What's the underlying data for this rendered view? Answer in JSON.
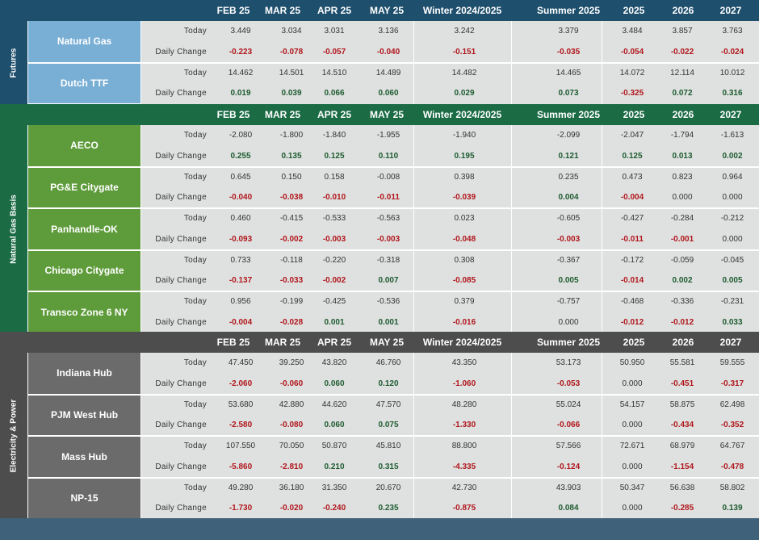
{
  "columns": [
    "FEB 25",
    "MAR 25",
    "APR 25",
    "MAY 25",
    "Winter 2024/2025",
    "Summer 2025",
    "2025",
    "2026",
    "2027"
  ],
  "row_labels": {
    "today": "Today",
    "daily_change": "Daily Change"
  },
  "colors": {
    "futures_header": "#1e4f6d",
    "futures_name": "#7aafd5",
    "basis_header": "#1b6b45",
    "basis_name": "#5e9b3a",
    "power_header": "#4d4d4d",
    "power_name": "#6b6b6b",
    "cell_bg": "#dfe1e0",
    "negative": "#b0161c",
    "positive": "#1d5b30",
    "footer": "#40617a"
  },
  "sections": [
    {
      "title": "Futures",
      "rows": [
        {
          "name": "Natural Gas",
          "today": [
            "3.449",
            "3.034",
            "3.031",
            "3.136",
            "3.242",
            "3.379",
            "3.484",
            "3.857",
            "3.763"
          ],
          "change": [
            "-0.223",
            "-0.078",
            "-0.057",
            "-0.040",
            "-0.151",
            "-0.035",
            "-0.054",
            "-0.022",
            "-0.024"
          ]
        },
        {
          "name": "Dutch TTF",
          "today": [
            "14.462",
            "14.501",
            "14.510",
            "14.489",
            "14.482",
            "14.465",
            "14.072",
            "12.114",
            "10.012"
          ],
          "change": [
            "0.019",
            "0.039",
            "0.066",
            "0.060",
            "0.029",
            "0.073",
            "-0.325",
            "0.072",
            "0.316"
          ]
        }
      ]
    },
    {
      "title": "Natural Gas Basis",
      "rows": [
        {
          "name": "AECO",
          "today": [
            "-2.080",
            "-1.800",
            "-1.840",
            "-1.955",
            "-1.940",
            "-2.099",
            "-2.047",
            "-1.794",
            "-1.613"
          ],
          "change": [
            "0.255",
            "0.135",
            "0.125",
            "0.110",
            "0.195",
            "0.121",
            "0.125",
            "0.013",
            "0.002"
          ]
        },
        {
          "name": "PG&E Citygate",
          "today": [
            "0.645",
            "0.150",
            "0.158",
            "-0.008",
            "0.398",
            "0.235",
            "0.473",
            "0.823",
            "0.964"
          ],
          "change": [
            "-0.040",
            "-0.038",
            "-0.010",
            "-0.011",
            "-0.039",
            "0.004",
            "-0.004",
            "0.000",
            "0.000"
          ]
        },
        {
          "name": "Panhandle-OK",
          "today": [
            "0.460",
            "-0.415",
            "-0.533",
            "-0.563",
            "0.023",
            "-0.605",
            "-0.427",
            "-0.284",
            "-0.212"
          ],
          "change": [
            "-0.093",
            "-0.002",
            "-0.003",
            "-0.003",
            "-0.048",
            "-0.003",
            "-0.011",
            "-0.001",
            "0.000"
          ]
        },
        {
          "name": "Chicago Citygate",
          "today": [
            "0.733",
            "-0.118",
            "-0.220",
            "-0.318",
            "0.308",
            "-0.367",
            "-0.172",
            "-0.059",
            "-0.045"
          ],
          "change": [
            "-0.137",
            "-0.033",
            "-0.002",
            "0.007",
            "-0.085",
            "0.005",
            "-0.014",
            "0.002",
            "0.005"
          ]
        },
        {
          "name": "Transco Zone 6 NY",
          "today": [
            "0.956",
            "-0.199",
            "-0.425",
            "-0.536",
            "0.379",
            "-0.757",
            "-0.468",
            "-0.336",
            "-0.231"
          ],
          "change": [
            "-0.004",
            "-0.028",
            "0.001",
            "0.001",
            "-0.016",
            "0.000",
            "-0.012",
            "-0.012",
            "0.033"
          ]
        }
      ]
    },
    {
      "title": "Electricity & Power",
      "rows": [
        {
          "name": "Indiana Hub",
          "today": [
            "47.450",
            "39.250",
            "43.820",
            "46.760",
            "43.350",
            "53.173",
            "50.950",
            "55.581",
            "59.555"
          ],
          "change": [
            "-2.060",
            "-0.060",
            "0.060",
            "0.120",
            "-1.060",
            "-0.053",
            "0.000",
            "-0.451",
            "-0.317"
          ]
        },
        {
          "name": "PJM West Hub",
          "today": [
            "53.680",
            "42.880",
            "44.620",
            "47.570",
            "48.280",
            "55.024",
            "54.157",
            "58.875",
            "62.498"
          ],
          "change": [
            "-2.580",
            "-0.080",
            "0.060",
            "0.075",
            "-1.330",
            "-0.066",
            "0.000",
            "-0.434",
            "-0.352"
          ]
        },
        {
          "name": "Mass Hub",
          "today": [
            "107.550",
            "70.050",
            "50.870",
            "45.810",
            "88.800",
            "57.566",
            "72.671",
            "68.979",
            "64.767"
          ],
          "change": [
            "-5.860",
            "-2.810",
            "0.210",
            "0.315",
            "-4.335",
            "-0.124",
            "0.000",
            "-1.154",
            "-0.478"
          ]
        },
        {
          "name": "NP-15",
          "today": [
            "49.280",
            "36.180",
            "31.350",
            "20.670",
            "42.730",
            "43.903",
            "50.347",
            "56.638",
            "58.802"
          ],
          "change": [
            "-1.730",
            "-0.020",
            "-0.240",
            "0.235",
            "-0.875",
            "0.084",
            "0.000",
            "-0.285",
            "0.139"
          ]
        }
      ]
    }
  ]
}
